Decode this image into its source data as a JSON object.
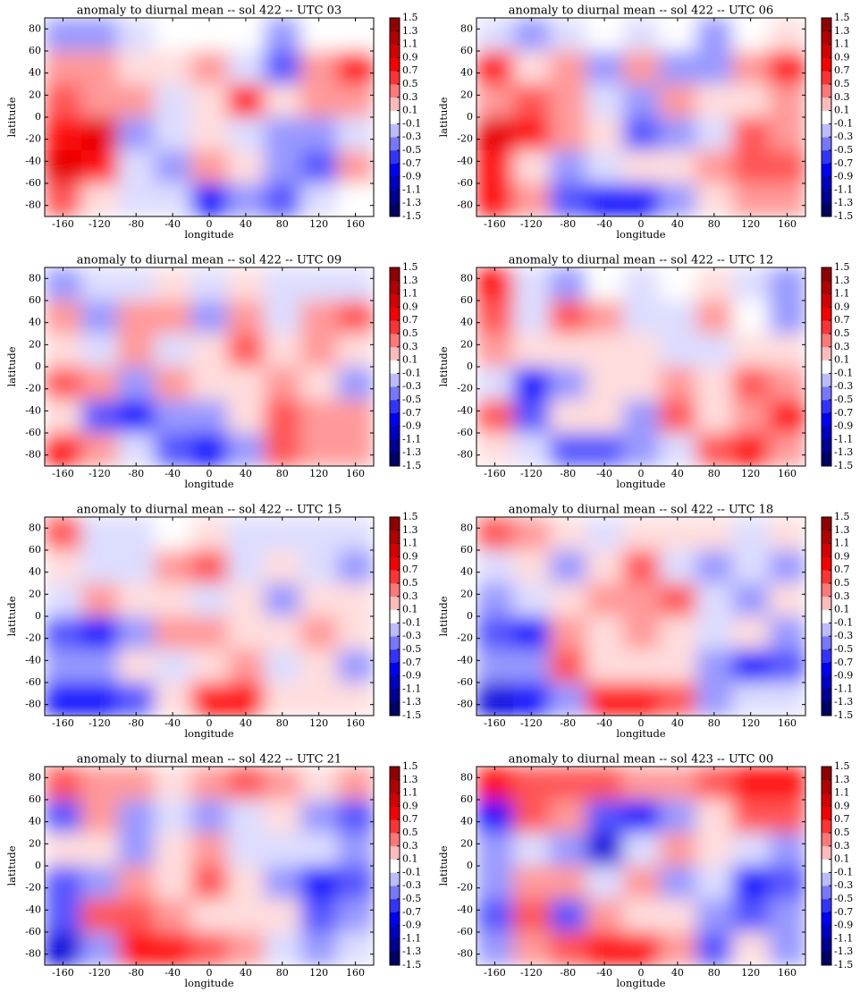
{
  "chart_data": [
    {
      "type": "contour",
      "title": "anomaly to diurnal mean -- sol 422 -- UTC 03",
      "xlabel": "longitude",
      "ylabel": "latitude",
      "colormap": "seismic",
      "xlim": [
        -180,
        180
      ],
      "ylim": [
        -90,
        90
      ],
      "xticks": [
        -160,
        -120,
        -80,
        -40,
        0,
        40,
        80,
        120,
        160
      ],
      "yticks": [
        -80,
        -60,
        -40,
        -20,
        0,
        20,
        40,
        60,
        80
      ],
      "levels": [
        -1.5,
        -1.3,
        -1.1,
        -0.9,
        -0.7,
        -0.5,
        -0.3,
        -0.1,
        0.1,
        0.3,
        0.5,
        0.7,
        0.9,
        1.1,
        1.3,
        1.5
      ],
      "x": [
        -160,
        -120,
        -80,
        -40,
        0,
        40,
        80,
        120,
        160
      ],
      "y": [
        75,
        45,
        15,
        -15,
        -45,
        -75
      ],
      "z": [
        [
          -0.3,
          -0.3,
          -0.1,
          0,
          0,
          0,
          -0.3,
          0,
          0
        ],
        [
          0.3,
          0.3,
          0.1,
          0.1,
          0.3,
          -0.1,
          -0.5,
          0.3,
          0.7
        ],
        [
          0.5,
          0.3,
          0.3,
          -0.1,
          0.1,
          0.7,
          0.1,
          0.3,
          0.3
        ],
        [
          0.7,
          0.9,
          -0.3,
          -0.1,
          0.1,
          -0.1,
          -0.3,
          -0.3,
          -0.1
        ],
        [
          0.9,
          0.7,
          -0.1,
          -0.3,
          0.3,
          0.1,
          -0.3,
          -0.5,
          0.3
        ],
        [
          0.5,
          0.1,
          -0.1,
          -0.1,
          -0.7,
          -0.3,
          -0.5,
          -0.1,
          0
        ]
      ]
    },
    {
      "type": "contour",
      "title": "anomaly to diurnal mean -- sol 422 -- UTC 06",
      "xlabel": "longitude",
      "ylabel": "latitude",
      "colormap": "seismic",
      "xlim": [
        -180,
        180
      ],
      "ylim": [
        -90,
        90
      ],
      "xticks": [
        -160,
        -120,
        -80,
        -40,
        0,
        40,
        80,
        120,
        160
      ],
      "yticks": [
        -80,
        -60,
        -40,
        -20,
        0,
        20,
        40,
        60,
        80
      ],
      "levels": [
        -1.5,
        -1.3,
        -1.1,
        -0.9,
        -0.7,
        -0.5,
        -0.3,
        -0.1,
        0.1,
        0.3,
        0.5,
        0.7,
        0.9,
        1.1,
        1.3,
        1.5
      ],
      "x": [
        -160,
        -120,
        -80,
        -40,
        0,
        40,
        80,
        120,
        160
      ],
      "y": [
        75,
        45,
        15,
        -15,
        -45,
        -75
      ],
      "z": [
        [
          -0.1,
          -0.3,
          -0.1,
          0,
          -0.1,
          0,
          -0.3,
          0,
          0.1
        ],
        [
          0.7,
          0.1,
          0.3,
          -0.3,
          0.3,
          -0.3,
          -0.3,
          0.3,
          0.7
        ],
        [
          0.3,
          0.5,
          0.3,
          -0.1,
          -0.3,
          0.3,
          0.1,
          0.1,
          0.3
        ],
        [
          0.9,
          0.7,
          0.3,
          0.1,
          -0.5,
          -0.3,
          -0.1,
          0.5,
          0.3
        ],
        [
          0.7,
          0.1,
          -0.3,
          -0.1,
          0.1,
          0.1,
          0.3,
          0.5,
          0.5
        ],
        [
          0.7,
          0.3,
          -0.5,
          -0.7,
          -0.7,
          -0.3,
          0.1,
          0.3,
          0.3
        ]
      ]
    },
    {
      "type": "contour",
      "title": "anomaly to diurnal mean -- sol 422 -- UTC 09",
      "xlabel": "longitude",
      "ylabel": "latitude",
      "colormap": "seismic",
      "xlim": [
        -180,
        180
      ],
      "ylim": [
        -90,
        90
      ],
      "xticks": [
        -160,
        -120,
        -80,
        -40,
        0,
        40,
        80,
        120,
        160
      ],
      "yticks": [
        -80,
        -60,
        -40,
        -20,
        0,
        20,
        40,
        60,
        80
      ],
      "levels": [
        -1.5,
        -1.3,
        -1.1,
        -0.9,
        -0.7,
        -0.5,
        -0.3,
        -0.1,
        0.1,
        0.3,
        0.5,
        0.7,
        0.9,
        1.1,
        1.3,
        1.5
      ],
      "x": [
        -160,
        -120,
        -80,
        -40,
        0,
        40,
        80,
        120,
        160
      ],
      "y": [
        75,
        45,
        15,
        -15,
        -45,
        -75
      ],
      "z": [
        [
          -0.3,
          -0.1,
          -0.1,
          0.1,
          -0.1,
          0.1,
          -0.1,
          -0.1,
          -0.1
        ],
        [
          0.3,
          -0.3,
          0.3,
          0.3,
          -0.3,
          0.3,
          -0.1,
          0.3,
          0.5
        ],
        [
          0.1,
          -0.1,
          0.3,
          -0.1,
          0.1,
          0.5,
          0.1,
          0.3,
          0.1
        ],
        [
          0.5,
          0.3,
          -0.3,
          0.3,
          0.1,
          0.1,
          0.3,
          0.1,
          -0.3
        ],
        [
          0.1,
          -0.5,
          -0.7,
          -0.3,
          -0.3,
          0.1,
          0.5,
          0.3,
          0.3
        ],
        [
          0.7,
          0.3,
          -0.1,
          -0.5,
          -0.7,
          -0.3,
          0.5,
          0.3,
          0.3
        ]
      ]
    },
    {
      "type": "contour",
      "title": "anomaly to diurnal mean -- sol 422 -- UTC 12",
      "xlabel": "longitude",
      "ylabel": "latitude",
      "colormap": "seismic",
      "xlim": [
        -180,
        180
      ],
      "ylim": [
        -90,
        90
      ],
      "xticks": [
        -160,
        -120,
        -80,
        -40,
        0,
        40,
        80,
        120,
        160
      ],
      "yticks": [
        -80,
        -60,
        -40,
        -20,
        0,
        20,
        40,
        60,
        80
      ],
      "levels": [
        -1.5,
        -1.3,
        -1.1,
        -0.9,
        -0.7,
        -0.5,
        -0.3,
        -0.1,
        0.1,
        0.3,
        0.5,
        0.7,
        0.9,
        1.1,
        1.3,
        1.5
      ],
      "x": [
        -160,
        -120,
        -80,
        -40,
        0,
        40,
        80,
        120,
        160
      ],
      "y": [
        75,
        45,
        15,
        -15,
        -45,
        -75
      ],
      "z": [
        [
          0.7,
          -0.1,
          -0.3,
          0,
          -0.1,
          0,
          0.1,
          -0.1,
          -0.3
        ],
        [
          0.5,
          -0.1,
          0.5,
          0.3,
          -0.1,
          -0.1,
          0.3,
          0,
          -0.3
        ],
        [
          0.3,
          0.1,
          0.1,
          0.1,
          0.1,
          -0.1,
          -0.1,
          0.1,
          0.1
        ],
        [
          -0.1,
          -0.7,
          -0.3,
          0.1,
          0.1,
          0.3,
          0.1,
          0.5,
          0.3
        ],
        [
          0.5,
          -0.5,
          0.1,
          0.1,
          -0.3,
          0.5,
          0.1,
          0.3,
          0.7
        ],
        [
          0.1,
          -0.1,
          -0.5,
          -0.5,
          -0.3,
          -0.1,
          0.5,
          0.7,
          0.3
        ]
      ]
    },
    {
      "type": "contour",
      "title": "anomaly to diurnal mean -- sol 422 -- UTC 15",
      "xlabel": "longitude",
      "ylabel": "latitude",
      "colormap": "seismic",
      "xlim": [
        -180,
        180
      ],
      "ylim": [
        -90,
        90
      ],
      "xticks": [
        -160,
        -120,
        -80,
        -40,
        0,
        40,
        80,
        120,
        160
      ],
      "yticks": [
        -80,
        -60,
        -40,
        -20,
        0,
        20,
        40,
        60,
        80
      ],
      "levels": [
        -1.5,
        -1.3,
        -1.1,
        -0.9,
        -0.7,
        -0.5,
        -0.3,
        -0.1,
        0.1,
        0.3,
        0.5,
        0.7,
        0.9,
        1.1,
        1.3,
        1.5
      ],
      "x": [
        -160,
        -120,
        -80,
        -40,
        0,
        40,
        80,
        120,
        160
      ],
      "y": [
        75,
        45,
        15,
        -15,
        -45,
        -75
      ],
      "z": [
        [
          0.5,
          -0.1,
          -0.1,
          0,
          0.1,
          -0.1,
          -0.1,
          -0.1,
          -0.1
        ],
        [
          0.1,
          -0.1,
          -0.1,
          0.3,
          0.5,
          -0.1,
          0.1,
          -0.1,
          -0.3
        ],
        [
          -0.1,
          0.3,
          0.1,
          0.1,
          -0.1,
          0.1,
          -0.3,
          0.1,
          0.1
        ],
        [
          -0.5,
          -0.7,
          -0.3,
          0.3,
          0.3,
          0.1,
          0.1,
          0.3,
          0.1
        ],
        [
          -0.3,
          -0.3,
          0.1,
          -0.1,
          0.1,
          0.3,
          -0.1,
          0.1,
          -0.3
        ],
        [
          -0.7,
          -0.7,
          -0.5,
          0.1,
          0.7,
          0.7,
          0.1,
          0.1,
          0.1
        ]
      ]
    },
    {
      "type": "contour",
      "title": "anomaly to diurnal mean -- sol 422 -- UTC 18",
      "xlabel": "longitude",
      "ylabel": "latitude",
      "colormap": "seismic",
      "xlim": [
        -180,
        180
      ],
      "ylim": [
        -90,
        90
      ],
      "xticks": [
        -160,
        -120,
        -80,
        -40,
        0,
        40,
        80,
        120,
        160
      ],
      "yticks": [
        -80,
        -60,
        -40,
        -20,
        0,
        20,
        40,
        60,
        80
      ],
      "levels": [
        -1.5,
        -1.3,
        -1.1,
        -0.9,
        -0.7,
        -0.5,
        -0.3,
        -0.1,
        0.1,
        0.3,
        0.5,
        0.7,
        0.9,
        1.1,
        1.3,
        1.5
      ],
      "x": [
        -160,
        -120,
        -80,
        -40,
        0,
        40,
        80,
        120,
        160
      ],
      "y": [
        75,
        45,
        15,
        -15,
        -45,
        -75
      ],
      "z": [
        [
          0.5,
          0.3,
          0.1,
          -0.1,
          0.1,
          0.1,
          0.1,
          -0.1,
          0.1
        ],
        [
          -0.1,
          0.1,
          -0.3,
          0.1,
          0.5,
          -0.1,
          -0.3,
          -0.1,
          -0.3
        ],
        [
          -0.3,
          -0.1,
          0.1,
          0.3,
          0.3,
          0.5,
          -0.1,
          -0.3,
          0.1
        ],
        [
          -0.5,
          -0.7,
          0.3,
          0.1,
          0.3,
          0.1,
          -0.1,
          0.1,
          -0.3
        ],
        [
          -0.3,
          -0.3,
          0.5,
          0.1,
          0.1,
          0.1,
          -0.3,
          -0.7,
          -0.5
        ],
        [
          -0.9,
          -0.7,
          -0.3,
          0.7,
          0.7,
          0.5,
          -0.3,
          -0.1,
          -0.1
        ]
      ]
    },
    {
      "type": "contour",
      "title": "anomaly to diurnal mean -- sol 422 -- UTC 21",
      "xlabel": "longitude",
      "ylabel": "latitude",
      "colormap": "seismic",
      "xlim": [
        -180,
        180
      ],
      "ylim": [
        -90,
        90
      ],
      "xticks": [
        -160,
        -120,
        -80,
        -40,
        0,
        40,
        80,
        120,
        160
      ],
      "yticks": [
        -80,
        -60,
        -40,
        -20,
        0,
        20,
        40,
        60,
        80
      ],
      "levels": [
        -1.5,
        -1.3,
        -1.1,
        -0.9,
        -0.7,
        -0.5,
        -0.3,
        -0.1,
        0.1,
        0.3,
        0.5,
        0.7,
        0.9,
        1.1,
        1.3,
        1.5
      ],
      "x": [
        -160,
        -120,
        -80,
        -40,
        0,
        40,
        80,
        120,
        160
      ],
      "y": [
        75,
        45,
        15,
        -15,
        -45,
        -75
      ],
      "z": [
        [
          0.5,
          0.3,
          0.3,
          0.1,
          0.3,
          0.5,
          0.3,
          0.1,
          0.3
        ],
        [
          -0.5,
          0.3,
          -0.3,
          -0.1,
          -0.3,
          -0.1,
          0.1,
          -0.3,
          -0.5
        ],
        [
          0.1,
          0.1,
          -0.3,
          0.1,
          0.3,
          -0.1,
          -0.1,
          -0.1,
          -0.3
        ],
        [
          -0.5,
          -0.3,
          0.3,
          0.1,
          0.5,
          0.1,
          -0.3,
          -0.7,
          -0.5
        ],
        [
          -0.5,
          0.5,
          0.5,
          0.3,
          0.1,
          0.1,
          0.1,
          -0.5,
          -0.3
        ],
        [
          -0.9,
          -0.3,
          0.7,
          0.7,
          0.5,
          0.3,
          -0.1,
          -0.3,
          -0.1
        ]
      ]
    },
    {
      "type": "contour",
      "title": "anomaly to diurnal mean -- sol 423 -- UTC 00",
      "xlabel": "longitude",
      "ylabel": "latitude",
      "colormap": "seismic",
      "xlim": [
        -180,
        180
      ],
      "ylim": [
        -90,
        90
      ],
      "xticks": [
        -160,
        -120,
        -80,
        -40,
        0,
        40,
        80,
        120,
        160
      ],
      "yticks": [
        -80,
        -60,
        -40,
        -20,
        0,
        20,
        40,
        60,
        80
      ],
      "levels": [
        -1.5,
        -1.3,
        -1.1,
        -0.9,
        -0.7,
        -0.5,
        -0.3,
        -0.1,
        0.1,
        0.3,
        0.5,
        0.7,
        0.9,
        1.1,
        1.3,
        1.5
      ],
      "x": [
        -160,
        -120,
        -80,
        -40,
        0,
        40,
        80,
        120,
        160
      ],
      "y": [
        75,
        45,
        15,
        -15,
        -45,
        -75
      ],
      "z": [
        [
          0.7,
          0.5,
          0.5,
          0.5,
          0.3,
          0.3,
          0.5,
          0.7,
          0.7
        ],
        [
          -0.7,
          0.5,
          0.3,
          -0.5,
          -0.7,
          -0.3,
          0.1,
          0.5,
          0.5
        ],
        [
          -0.3,
          -0.1,
          -0.3,
          -0.9,
          -0.1,
          0.3,
          0.1,
          -0.1,
          -0.3
        ],
        [
          -0.3,
          0.3,
          0.3,
          -0.1,
          0.3,
          -0.3,
          -0.1,
          -0.7,
          -0.5
        ],
        [
          -0.5,
          0.5,
          -0.5,
          0.3,
          0.1,
          0.1,
          -0.3,
          -0.5,
          -0.3
        ],
        [
          -0.3,
          0.3,
          0.5,
          0.7,
          0.7,
          0.3,
          -0.5,
          0.1,
          -0.3
        ]
      ]
    }
  ]
}
